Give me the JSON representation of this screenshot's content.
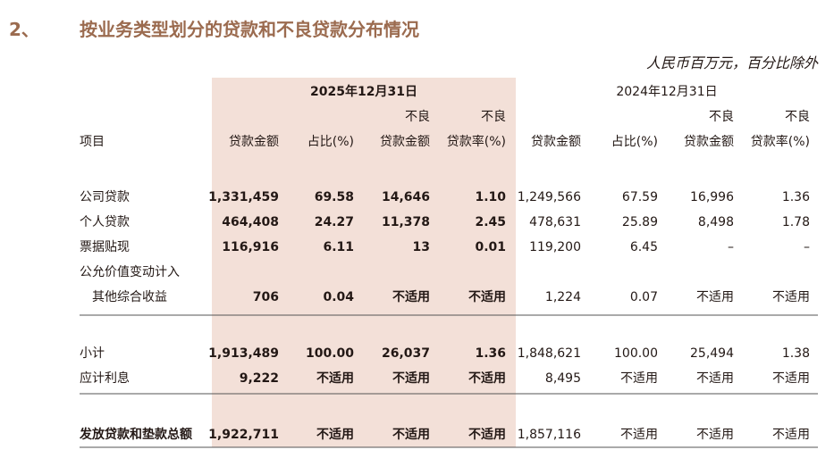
{
  "header": {
    "number": "2、",
    "title": "按业务类型划分的贷款和不良贷款分布情况",
    "unit_note": "人民币百万元，百分比除外"
  },
  "table": {
    "groups": [
      "2025年12月31日",
      "2024年12月31日"
    ],
    "columns": [
      [
        "项目"
      ],
      [
        "贷款金额"
      ],
      [
        "占比(%)"
      ],
      [
        "不良",
        "贷款金额"
      ],
      [
        "不良",
        "贷款率(%)"
      ],
      [
        "贷款金额"
      ],
      [
        "占比(%)"
      ],
      [
        "不良",
        "贷款金额"
      ],
      [
        "不良",
        "贷款率(%)"
      ]
    ],
    "rows": [
      {
        "label": [
          "公司贷款"
        ],
        "cells": [
          "1,331,459",
          "69.58",
          "14,646",
          "1.10",
          "1,249,566",
          "67.59",
          "16,996",
          "1.36"
        ]
      },
      {
        "label": [
          "个人贷款"
        ],
        "cells": [
          "464,408",
          "24.27",
          "11,378",
          "2.45",
          "478,631",
          "25.89",
          "8,498",
          "1.78"
        ]
      },
      {
        "label": [
          "票据贴现"
        ],
        "cells": [
          "116,916",
          "6.11",
          "13",
          "0.01",
          "119,200",
          "6.45",
          "–",
          "–"
        ]
      },
      {
        "label": [
          "公允价值变动计入",
          "其他综合收益"
        ],
        "cells": [
          "706",
          "0.04",
          "不适用",
          "不适用",
          "1,224",
          "0.07",
          "不适用",
          "不适用"
        ]
      },
      {
        "label": [
          "小计"
        ],
        "cells": [
          "1,913,489",
          "100.00",
          "26,037",
          "1.36",
          "1,848,621",
          "100.00",
          "25,494",
          "1.38"
        ]
      },
      {
        "label": [
          "应计利息"
        ],
        "cells": [
          "9,222",
          "不适用",
          "不适用",
          "不适用",
          "8,495",
          "不适用",
          "不适用",
          "不适用"
        ]
      },
      {
        "label": [
          "发放贷款和垫款总额"
        ],
        "cells": [
          "1,922,711",
          "不适用",
          "不适用",
          "不适用",
          "1,857,116",
          "不适用",
          "不适用",
          "不适用"
        ]
      }
    ]
  }
}
